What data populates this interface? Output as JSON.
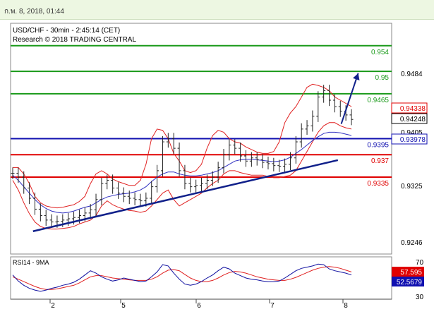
{
  "header": {
    "timestamp": "ก.พ. 8, 2018, 01:44"
  },
  "chart_data": [
    {
      "type": "line",
      "title": "USD/CHF - 30min - 2:45:14 (CET)",
      "subtitle": "Research © 2018 TRADING CENTRAL",
      "x_ticks": [
        "2",
        "5",
        "6",
        "7",
        "8"
      ],
      "y_ticks": [
        "0.9484",
        "0.9325",
        "0.9246"
      ],
      "ylim": [
        0.9215,
        0.9575
      ],
      "price_badges": [
        {
          "value": "0.94338",
          "color": "#e00000"
        },
        {
          "value": "0.94248",
          "color": "#000000"
        },
        {
          "value": "0.93978",
          "color": "#1010b0"
        }
      ],
      "obscured_tick": "0.9405",
      "levels": [
        {
          "label": "0.954",
          "value": 0.954,
          "color": "#1a9a1a"
        },
        {
          "label": "0.95",
          "value": 0.95,
          "color": "#1a9a1a"
        },
        {
          "label": "0.9465",
          "value": 0.9465,
          "color": "#1a9a1a"
        },
        {
          "label": "0.9395",
          "value": 0.9395,
          "color": "#1010b0"
        },
        {
          "label": "0.937",
          "value": 0.937,
          "color": "#e00000"
        },
        {
          "label": "0.9335",
          "value": 0.9335,
          "color": "#e00000"
        }
      ],
      "trendline": {
        "from": [
          0.06,
          0.92505
        ],
        "to": [
          0.96,
          0.93615
        ],
        "color": "#10208a"
      },
      "forecast_arrow": {
        "from": [
          0.97,
          0.9418
        ],
        "to": [
          1.02,
          0.9497
        ],
        "color": "#10208a"
      },
      "close": [
        0.9341,
        0.9335,
        0.9318,
        0.9302,
        0.9285,
        0.9275,
        0.9268,
        0.9265,
        0.9266,
        0.9268,
        0.927,
        0.9272,
        0.9275,
        0.9279,
        0.9284,
        0.93,
        0.9325,
        0.933,
        0.9318,
        0.931,
        0.9305,
        0.9302,
        0.93,
        0.9298,
        0.9302,
        0.932,
        0.9345,
        0.939,
        0.9395,
        0.938,
        0.9345,
        0.9325,
        0.932,
        0.9322,
        0.9325,
        0.933,
        0.9335,
        0.935,
        0.937,
        0.9385,
        0.938,
        0.9368,
        0.936,
        0.9365,
        0.9362,
        0.9358,
        0.9356,
        0.9353,
        0.9352,
        0.9355,
        0.9365,
        0.939,
        0.941,
        0.9415,
        0.943,
        0.946,
        0.947,
        0.9455,
        0.9445,
        0.9438,
        0.9432,
        0.9425
      ],
      "upper_band": [
        0.935,
        0.935,
        0.934,
        0.9325,
        0.9305,
        0.9295,
        0.929,
        0.9288,
        0.9287,
        0.9288,
        0.929,
        0.9292,
        0.9297,
        0.9305,
        0.9325,
        0.934,
        0.9345,
        0.934,
        0.9332,
        0.9328,
        0.9325,
        0.9322,
        0.9322,
        0.933,
        0.9355,
        0.9395,
        0.941,
        0.9408,
        0.9395,
        0.9372,
        0.936,
        0.9345,
        0.9342,
        0.9345,
        0.9355,
        0.938,
        0.94,
        0.9408,
        0.9405,
        0.9395,
        0.939,
        0.9388,
        0.9382,
        0.9378,
        0.9374,
        0.9372,
        0.9372,
        0.9375,
        0.939,
        0.942,
        0.9435,
        0.9445,
        0.946,
        0.9475,
        0.948,
        0.9478,
        0.9475,
        0.947,
        0.946,
        0.9455,
        0.945,
        0.9445
      ],
      "lower_band": [
        0.933,
        0.9315,
        0.9295,
        0.9278,
        0.9265,
        0.9258,
        0.9255,
        0.9254,
        0.9254,
        0.9255,
        0.9256,
        0.9258,
        0.9262,
        0.9265,
        0.9268,
        0.9275,
        0.929,
        0.9298,
        0.9292,
        0.9288,
        0.9285,
        0.9283,
        0.9282,
        0.928,
        0.9282,
        0.929,
        0.93,
        0.931,
        0.9315,
        0.93,
        0.929,
        0.9295,
        0.93,
        0.9305,
        0.931,
        0.9318,
        0.9325,
        0.933,
        0.934,
        0.9345,
        0.9345,
        0.9342,
        0.934,
        0.9338,
        0.9338,
        0.9338,
        0.9336,
        0.9334,
        0.9334,
        0.9336,
        0.9338,
        0.9345,
        0.936,
        0.9375,
        0.939,
        0.9405,
        0.9415,
        0.942,
        0.942,
        0.9415,
        0.9412,
        0.941
      ],
      "moving_average": [
        0.9338,
        0.933,
        0.932,
        0.931,
        0.93,
        0.9292,
        0.9286,
        0.9282,
        0.928,
        0.9279,
        0.928,
        0.9282,
        0.9285,
        0.9288,
        0.929,
        0.9295,
        0.93,
        0.9304,
        0.9306,
        0.9308,
        0.9309,
        0.931,
        0.9312,
        0.9315,
        0.932,
        0.9328,
        0.9335,
        0.934,
        0.9343,
        0.9343,
        0.934,
        0.9338,
        0.9337,
        0.9337,
        0.9338,
        0.934,
        0.9342,
        0.9345,
        0.935,
        0.9355,
        0.936,
        0.9362,
        0.9363,
        0.9363,
        0.9362,
        0.9361,
        0.936,
        0.9359,
        0.936,
        0.9362,
        0.9366,
        0.9372,
        0.9378,
        0.9385,
        0.9392,
        0.9398,
        0.9403,
        0.9405,
        0.9405,
        0.9404,
        0.9402,
        0.94
      ],
      "grid": false
    },
    {
      "type": "line",
      "title": "RSI14 - 9MA",
      "y_ticks": [
        "70",
        "30"
      ],
      "ylim": [
        15,
        85
      ],
      "badges": [
        {
          "value": "57.595",
          "color": "#e00000"
        },
        {
          "value": "52.5679",
          "color": "#1010b0"
        }
      ],
      "rsi": [
        55,
        45,
        38,
        33,
        30,
        28,
        30,
        33,
        35,
        38,
        40,
        43,
        48,
        55,
        62,
        58,
        52,
        48,
        45,
        47,
        50,
        48,
        46,
        44,
        45,
        52,
        60,
        72,
        70,
        58,
        48,
        40,
        38,
        40,
        44,
        50,
        55,
        62,
        68,
        65,
        58,
        54,
        50,
        48,
        47,
        45,
        44,
        44,
        45,
        50,
        56,
        62,
        66,
        68,
        70,
        73,
        72,
        65,
        62,
        60,
        58,
        55
      ],
      "ma": [
        52,
        48,
        44,
        40,
        36,
        33,
        31,
        31,
        32,
        34,
        36,
        38,
        42,
        47,
        52,
        54,
        54,
        52,
        50,
        49,
        48,
        47,
        46,
        46,
        46,
        48,
        52,
        58,
        63,
        64,
        62,
        56,
        50,
        46,
        44,
        44,
        46,
        50,
        55,
        59,
        61,
        60,
        58,
        55,
        52,
        50,
        48,
        47,
        46,
        46,
        48,
        51,
        55,
        59,
        63,
        66,
        68,
        69,
        68,
        66,
        63,
        60
      ],
      "grid": false
    }
  ]
}
